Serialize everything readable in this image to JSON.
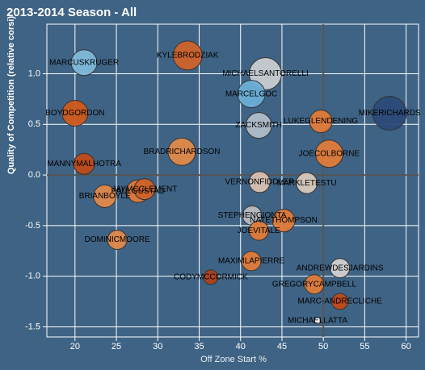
{
  "chart_data": {
    "type": "scatter",
    "title": "2013-2014 Season - All",
    "x_label": "Off Zone Start %",
    "y_label": "Quality of Competition (relative corsi)",
    "xlim": [
      16.6,
      61.5
    ],
    "ylim": [
      -1.6,
      1.49
    ],
    "xticks": [
      20,
      25,
      30,
      35,
      40,
      45,
      50,
      55,
      60
    ],
    "yticks": [
      {
        "value": 1,
        "label": "1.0"
      },
      0.5,
      {
        "value": 0,
        "label": "0.0"
      },
      -0.5,
      {
        "value": -1,
        "label": "-1.0"
      },
      -1.5
    ],
    "grid": true,
    "reference_lines": {
      "x": 50,
      "y": 0
    },
    "points": [
      {
        "name": "MIKERICHARDS",
        "x": 58.0,
        "y": 0.61,
        "size": 21,
        "color": "#2b4a78"
      },
      {
        "name": "MICHAELSANTORELLI",
        "x": 43.0,
        "y": 1.0,
        "size": 20,
        "color": "#c8ccd0"
      },
      {
        "name": "KYLEBRODZIAK",
        "x": 33.6,
        "y": 1.18,
        "size": 18,
        "color": "#d0622a"
      },
      {
        "name": "MARCUSKRUGER",
        "x": 21.1,
        "y": 1.11,
        "size": 16,
        "color": "#7fb8d8"
      },
      {
        "name": "MARCELGOC",
        "x": 41.3,
        "y": 0.8,
        "size": 17,
        "color": "#6aaed6"
      },
      {
        "name": "BOYDGORDON",
        "x": 20.0,
        "y": 0.61,
        "size": 16,
        "color": "#d05a1e"
      },
      {
        "name": "ZACKSMITH",
        "x": 42.2,
        "y": 0.49,
        "size": 16,
        "color": "#b0bcc8"
      },
      {
        "name": "LUKEGLENDENING",
        "x": 49.7,
        "y": 0.53,
        "size": 14,
        "color": "#e07b39"
      },
      {
        "name": "BRADRICHARDSON",
        "x": 32.9,
        "y": 0.23,
        "size": 17,
        "color": "#e0894a"
      },
      {
        "name": "JOECOLBORNE",
        "x": 50.7,
        "y": 0.21,
        "size": 17,
        "color": "#e07b39"
      },
      {
        "name": "MANNYMALHOTRA",
        "x": 21.1,
        "y": 0.11,
        "size": 13,
        "color": "#c04a18"
      },
      {
        "name": "PAULGUSTAD",
        "x": 27.6,
        "y": -0.16,
        "size": 14,
        "color": "#e07b39"
      },
      {
        "name": "JAYMCCLEMENT",
        "x": 28.4,
        "y": -0.14,
        "size": 13,
        "color": "#d0622a"
      },
      {
        "name": "BRIANBOYLE",
        "x": 23.6,
        "y": -0.21,
        "size": 14,
        "color": "#e0894a"
      },
      {
        "name": "VERNONFIDDLER",
        "x": 42.3,
        "y": -0.07,
        "size": 13,
        "color": "#d8c0b0"
      },
      {
        "name": "MARKLETESTU",
        "x": 48.0,
        "y": -0.08,
        "size": 13,
        "color": "#d8c8bc"
      },
      {
        "name": "STEPHENGIONTA",
        "x": 41.4,
        "y": -0.4,
        "size": 12,
        "color": "#b8bcc0"
      },
      {
        "name": "NATETHOMPSON",
        "x": 45.2,
        "y": -0.45,
        "size": 14,
        "color": "#e07b39"
      },
      {
        "name": "JOEVITALE",
        "x": 42.2,
        "y": -0.55,
        "size": 12,
        "color": "#e07b39"
      },
      {
        "name": "DOMINICMOORE",
        "x": 25.1,
        "y": -0.64,
        "size": 12,
        "color": "#e0894a"
      },
      {
        "name": "MAXIMLAPIERRE",
        "x": 41.3,
        "y": -0.85,
        "size": 12,
        "color": "#e07b39"
      },
      {
        "name": "ANDREWDESJARDINS",
        "x": 52.0,
        "y": -0.92,
        "size": 12,
        "color": "#d0d0d0"
      },
      {
        "name": "CODYMCCORMICK",
        "x": 36.4,
        "y": -1.01,
        "size": 9,
        "color": "#b0401a"
      },
      {
        "name": "GREGORYCAMPBELL",
        "x": 48.9,
        "y": -1.08,
        "size": 12,
        "color": "#e07b39"
      },
      {
        "name": "MARC-ANDRECLICHE",
        "x": 52.0,
        "y": -1.25,
        "size": 10,
        "color": "#c04a18"
      },
      {
        "name": "MICHAELLATTA",
        "x": 49.3,
        "y": -1.44,
        "size": 4,
        "color": "#ffffff"
      }
    ]
  }
}
